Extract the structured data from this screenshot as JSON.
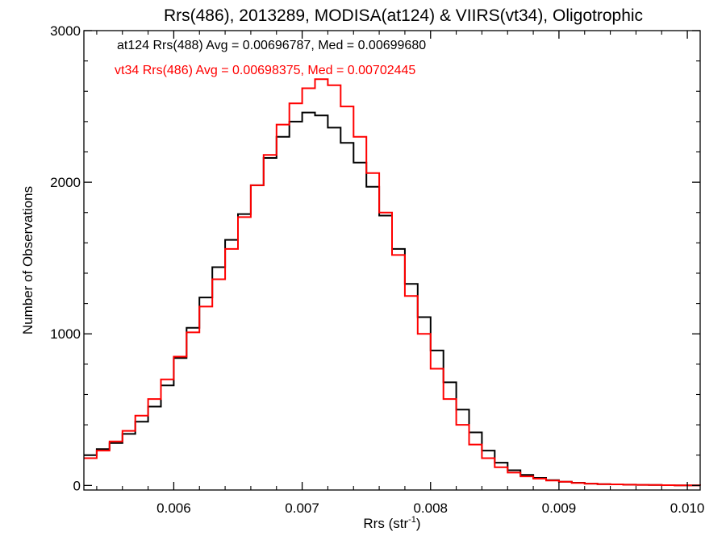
{
  "chart_data": {
    "type": "line",
    "title": "Rrs(486), 2013289, MODISA(at124) & VIIRS(vt34), Oligotrophic",
    "xlabel_main": "Rrs (str",
    "xlabel_sup": "-1",
    "xlabel_end": ")",
    "ylabel": "Number of Observations",
    "xlim": [
      0.0053,
      0.0101
    ],
    "ylim": [
      -30,
      3000
    ],
    "x_ticks": [
      0.006,
      0.007,
      0.008,
      0.009,
      0.01
    ],
    "x_tick_labels": [
      "0.006",
      "0.007",
      "0.008",
      "0.009",
      "0.010"
    ],
    "y_ticks": [
      0,
      1000,
      2000,
      3000
    ],
    "y_tick_labels": [
      "0",
      "1000",
      "2000",
      "3000"
    ],
    "grid": false,
    "step": true,
    "annotations": [
      {
        "text": "at124 Rrs(488) Avg = 0.00696787, Med = 0.00699680",
        "color": "#000000"
      },
      {
        "text": "vt34 Rrs(486) Avg = 0.00698375, Med = 0.00702445",
        "color": "#ff0000"
      }
    ],
    "series": [
      {
        "label": "at124",
        "color": "#000000",
        "x": [
          0.0053,
          0.0054,
          0.0055,
          0.0056,
          0.0057,
          0.0058,
          0.0059,
          0.006,
          0.0061,
          0.0062,
          0.0063,
          0.0064,
          0.0065,
          0.0066,
          0.0067,
          0.0068,
          0.0069,
          0.007,
          0.0071,
          0.0072,
          0.0073,
          0.0074,
          0.0075,
          0.0076,
          0.0077,
          0.0078,
          0.0079,
          0.008,
          0.0081,
          0.0082,
          0.0083,
          0.0084,
          0.0085,
          0.0086,
          0.0087,
          0.0088,
          0.0089,
          0.009,
          0.0091,
          0.0092,
          0.0093,
          0.0094,
          0.0095,
          0.0096,
          0.0097,
          0.0098,
          0.0099,
          0.01,
          0.0101
        ],
        "values": [
          200,
          240,
          280,
          340,
          420,
          520,
          660,
          840,
          1040,
          1240,
          1440,
          1620,
          1790,
          1980,
          2160,
          2300,
          2400,
          2460,
          2440,
          2360,
          2260,
          2130,
          1970,
          1780,
          1560,
          1330,
          1110,
          890,
          680,
          500,
          350,
          230,
          150,
          100,
          70,
          50,
          35,
          25,
          18,
          12,
          9,
          7,
          5,
          4,
          3,
          2,
          1,
          1,
          0
        ]
      },
      {
        "label": "vt34",
        "color": "#ff0000",
        "x": [
          0.0053,
          0.0054,
          0.0055,
          0.0056,
          0.0057,
          0.0058,
          0.0059,
          0.006,
          0.0061,
          0.0062,
          0.0063,
          0.0064,
          0.0065,
          0.0066,
          0.0067,
          0.0068,
          0.0069,
          0.007,
          0.0071,
          0.0072,
          0.0073,
          0.0074,
          0.0075,
          0.0076,
          0.0077,
          0.0078,
          0.0079,
          0.008,
          0.0081,
          0.0082,
          0.0083,
          0.0084,
          0.0085,
          0.0086,
          0.0087,
          0.0088,
          0.0089,
          0.009,
          0.0091,
          0.0092,
          0.0093,
          0.0094,
          0.0095,
          0.0096,
          0.0097,
          0.0098,
          0.0099,
          0.01,
          0.0101
        ],
        "values": [
          180,
          230,
          290,
          360,
          460,
          570,
          700,
          850,
          1010,
          1180,
          1360,
          1560,
          1770,
          1980,
          2180,
          2380,
          2520,
          2620,
          2680,
          2640,
          2500,
          2300,
          2060,
          1800,
          1520,
          1250,
          1000,
          770,
          570,
          400,
          270,
          180,
          120,
          85,
          60,
          45,
          32,
          24,
          17,
          12,
          9,
          7,
          5,
          4,
          3,
          2,
          1,
          1,
          0
        ]
      }
    ]
  }
}
